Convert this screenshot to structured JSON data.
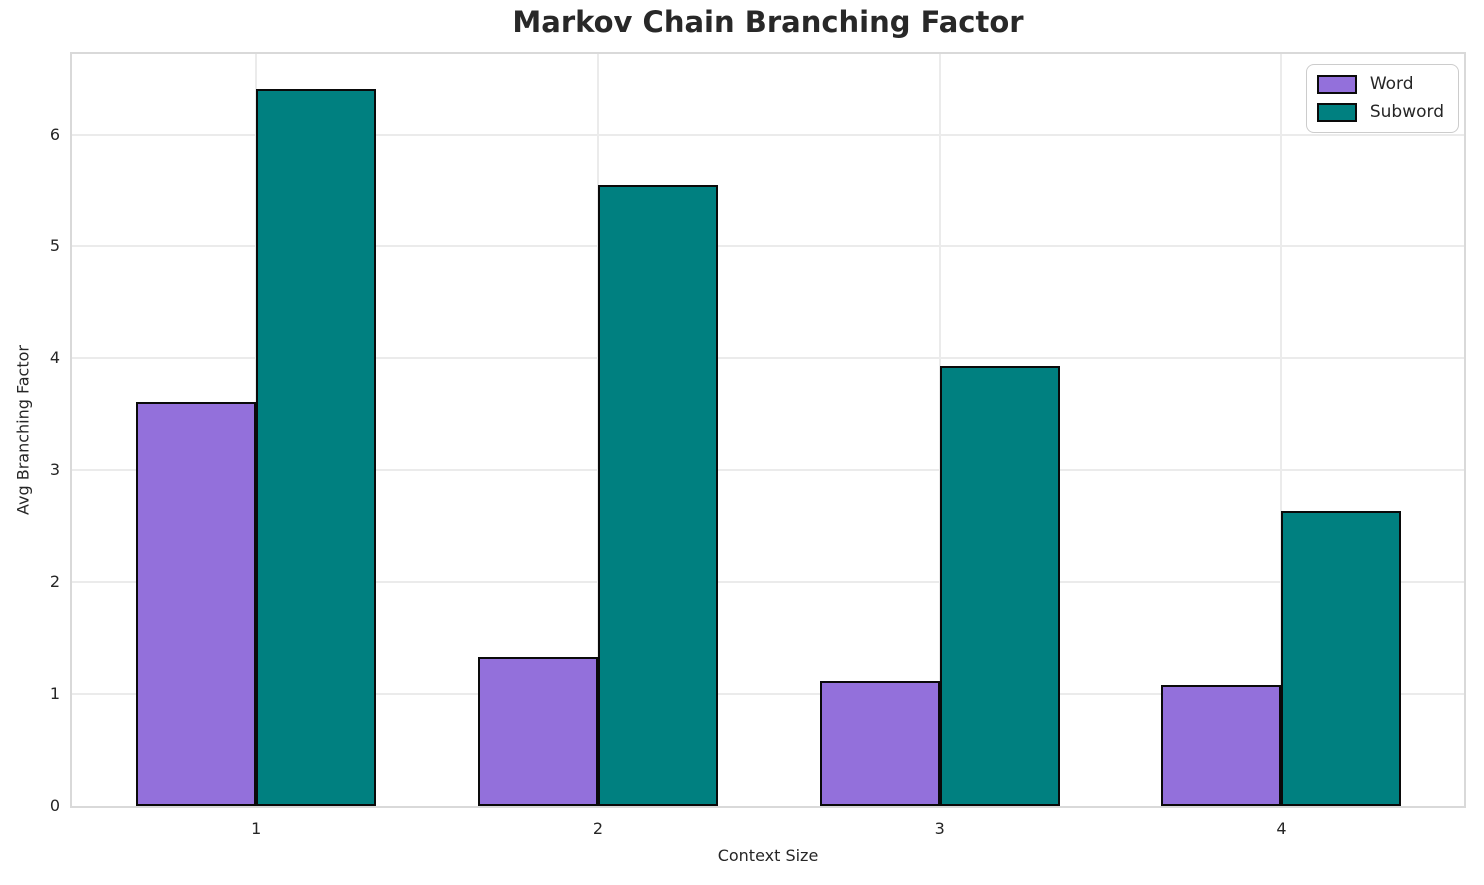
{
  "chart_data": {
    "type": "bar",
    "title": "Markov Chain Branching Factor",
    "xlabel": "Context Size",
    "ylabel": "Avg Branching Factor",
    "categories": [
      "1",
      "2",
      "3",
      "4"
    ],
    "series": [
      {
        "name": "Word",
        "color": "#9370DB",
        "values": [
          3.61,
          1.33,
          1.12,
          1.08
        ]
      },
      {
        "name": "Subword",
        "color": "#008080",
        "values": [
          6.41,
          5.55,
          3.93,
          2.64
        ]
      }
    ],
    "ylim": [
      0,
      6.72
    ],
    "yticks": [
      0,
      1,
      2,
      3,
      4,
      5,
      6
    ],
    "grid": true,
    "legend_position": "upper-right",
    "colors": {
      "bar_edge": "#0a0a0a",
      "grid": "#ebebeb",
      "spine": "#d9d9d9",
      "text": "#262626",
      "word_fill": "#9370DB",
      "subword_fill": "#008080",
      "background": "#ffffff"
    }
  }
}
